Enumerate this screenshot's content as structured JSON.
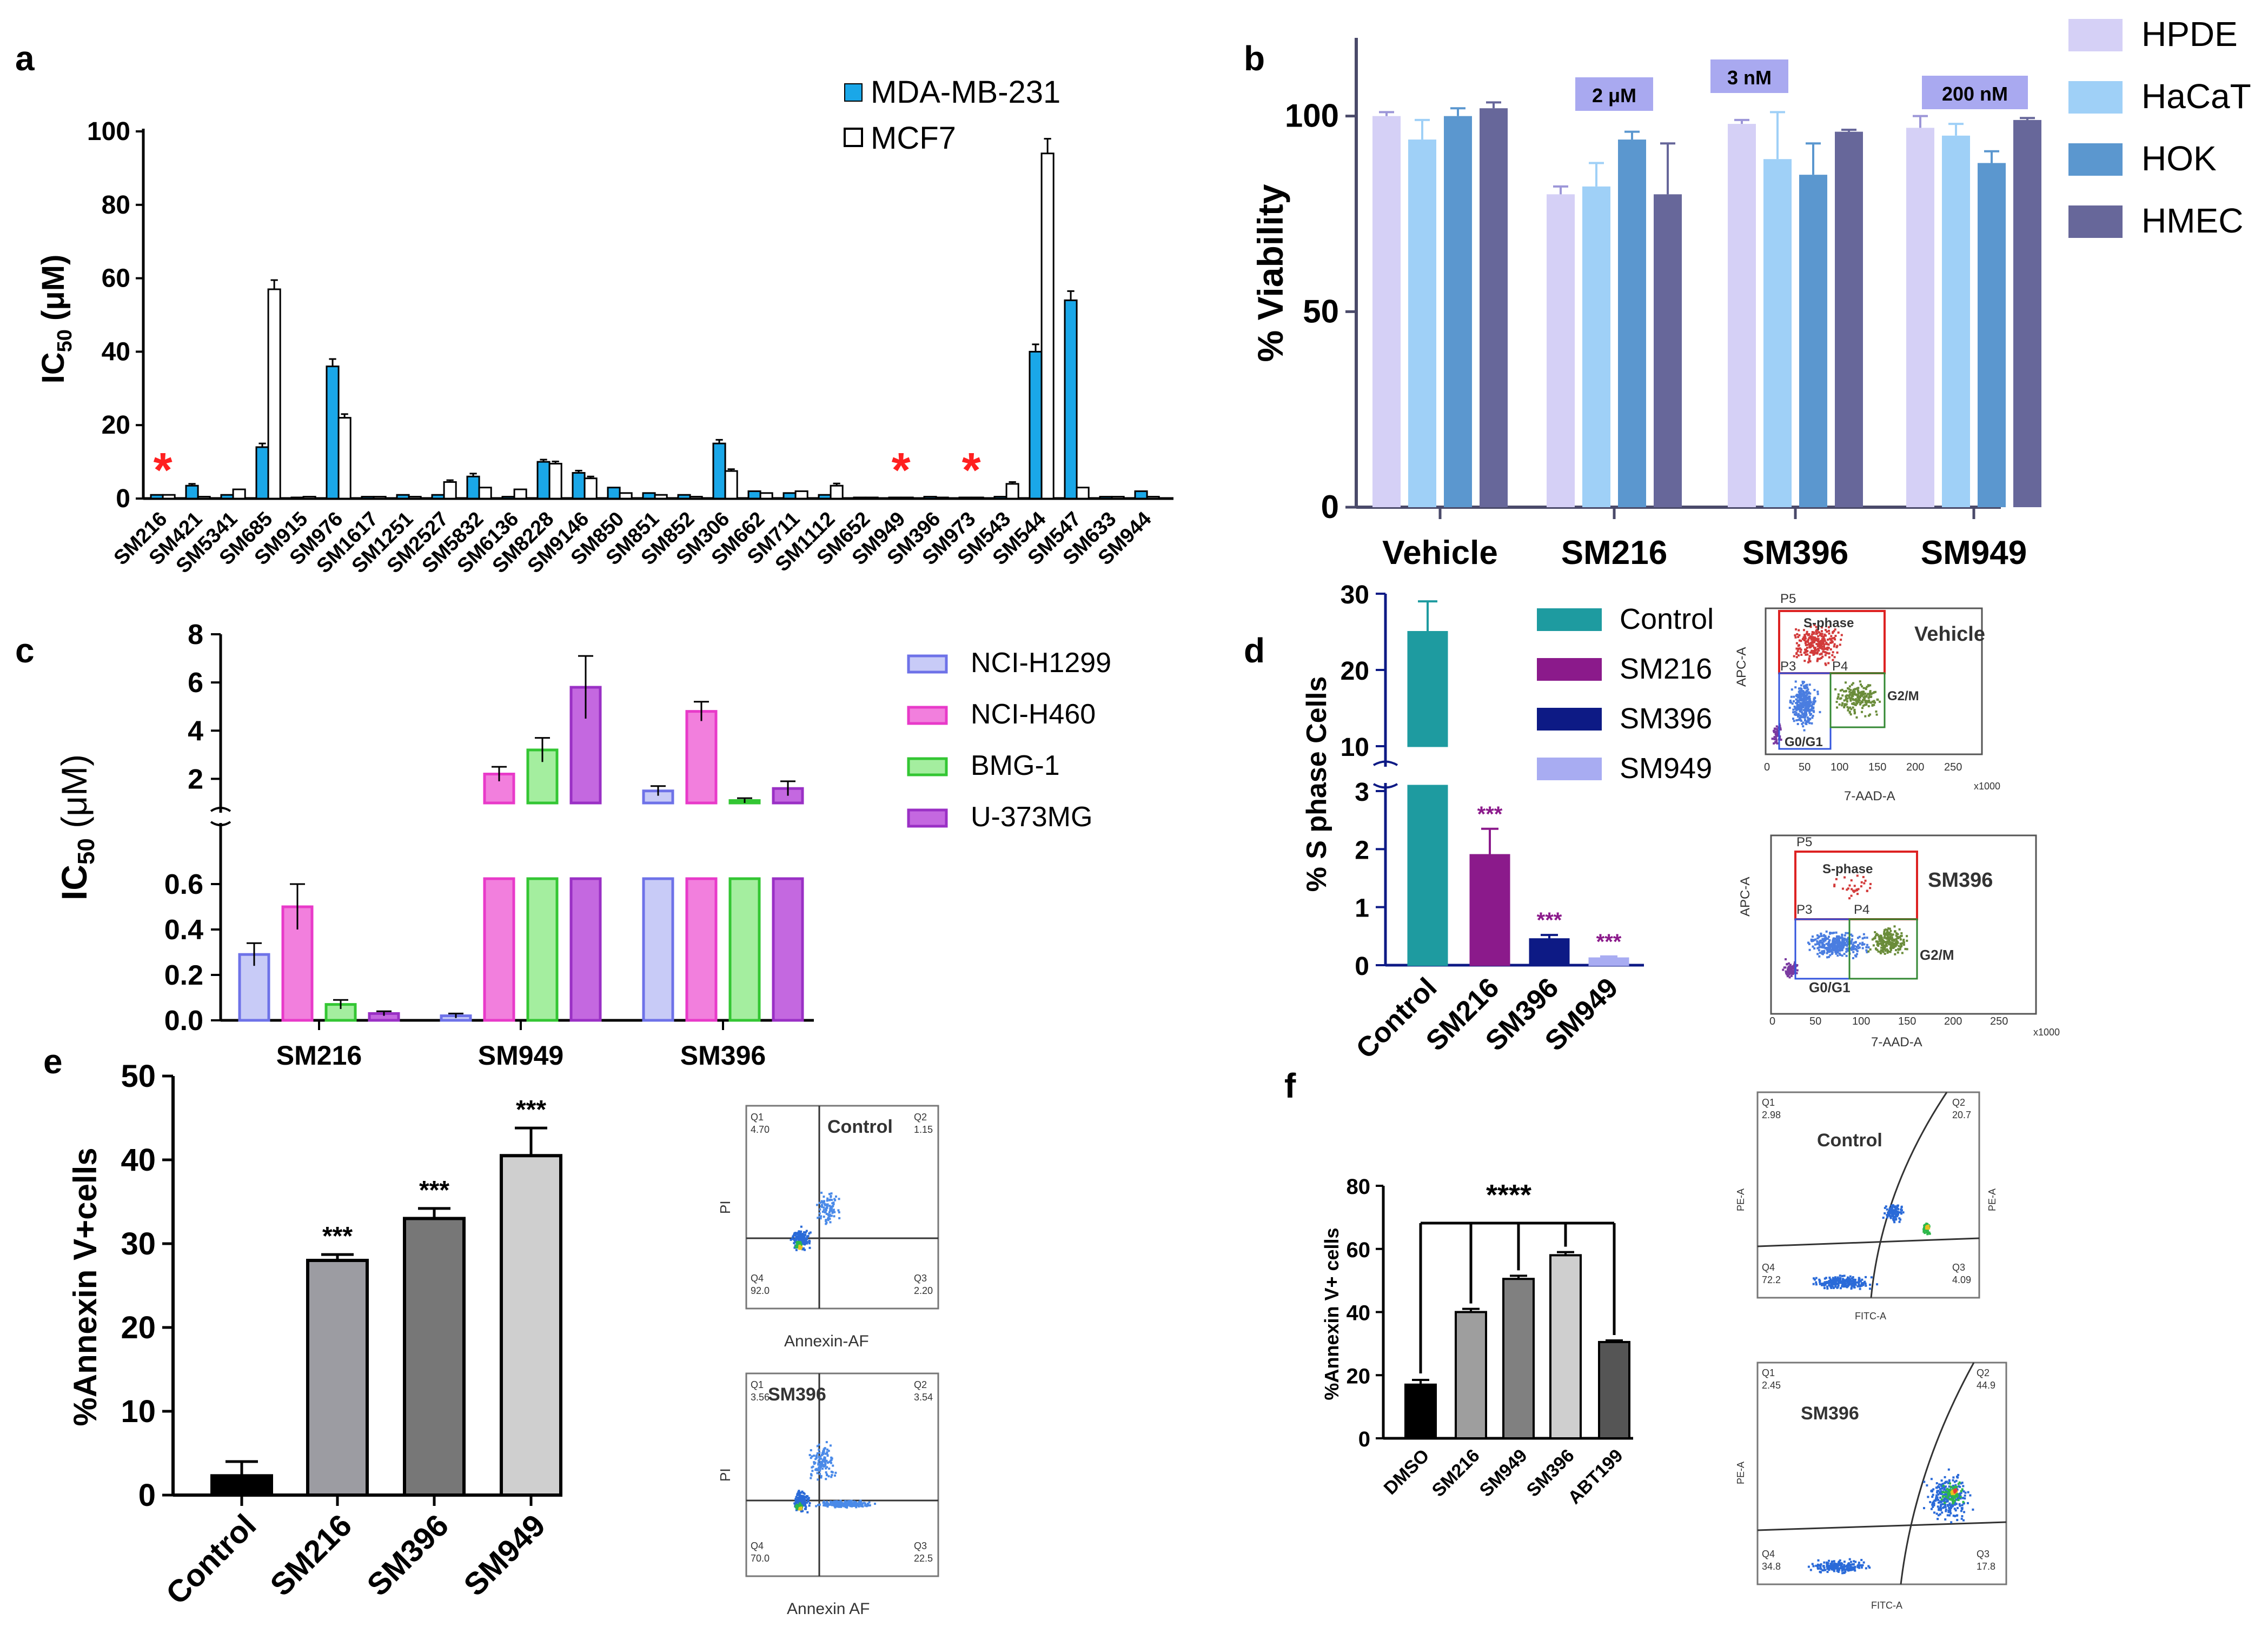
{
  "chart_data": [
    {
      "panel": "a",
      "type": "bar",
      "ylabel": "IC50 (μM)",
      "ylabel_main": "IC",
      "ylabel_sub": "50",
      "ylabel_unit": " (μM)",
      "ylim": [
        0,
        100
      ],
      "yticks": [
        0,
        20,
        40,
        60,
        80,
        100
      ],
      "categories": [
        "SM216",
        "SM421",
        "SM5341",
        "SM685",
        "SM915",
        "SM976",
        "SM1617",
        "SM1251",
        "SM2527",
        "SM5832",
        "SM6136",
        "SM8228",
        "SM9146",
        "SM850",
        "SM851",
        "SM852",
        "SM306",
        "SM662",
        "SM711",
        "SM1112",
        "SM652",
        "SM949",
        "SM396",
        "SM973",
        "SM543",
        "SM544",
        "SM547",
        "SM633",
        "SM944"
      ],
      "series": [
        {
          "name": "MDA-MB-231",
          "color": "#1aa7e8",
          "values": [
            1,
            3.5,
            1,
            14,
            0.3,
            36,
            0.5,
            1,
            1,
            6,
            0.5,
            10,
            7,
            3,
            1.5,
            1,
            15,
            2,
            1.5,
            1,
            0.3,
            0.3,
            0.5,
            0.3,
            0.5,
            40,
            54,
            0.5,
            2
          ],
          "errors": [
            0,
            0.5,
            0,
            1,
            0,
            2,
            0,
            0,
            0,
            0.8,
            0,
            0.6,
            0.6,
            0,
            0,
            0,
            1,
            0,
            0,
            0,
            0,
            0,
            0,
            0,
            0,
            2,
            2.5,
            0,
            0
          ]
        },
        {
          "name": "MCF7",
          "color": "#ffffff",
          "values": [
            1,
            0.5,
            2.5,
            57,
            0.5,
            22,
            0.5,
            0.5,
            4.5,
            3,
            2.5,
            9.5,
            5.5,
            1.5,
            1,
            0.5,
            7.5,
            1.5,
            2,
            3.5,
            0.3,
            0.3,
            0.3,
            0.3,
            4,
            94,
            3,
            0.5,
            0.5
          ],
          "errors": [
            0,
            0,
            0,
            2.5,
            0,
            1,
            0,
            0,
            0.5,
            0,
            0,
            0.6,
            0.5,
            0,
            0,
            0,
            0.5,
            0,
            0,
            0.6,
            0,
            0,
            0,
            0,
            0.5,
            4,
            0,
            0,
            0
          ]
        }
      ],
      "annotations": [
        {
          "text": "*",
          "category": "SM216"
        },
        {
          "text": "*",
          "category": "SM949"
        },
        {
          "text": "*",
          "category": "SM973"
        }
      ]
    },
    {
      "panel": "b",
      "type": "bar",
      "ylabel": "% Viability",
      "ylim": [
        0,
        120
      ],
      "yticks": [
        0,
        50,
        100
      ],
      "categories": [
        "Vehicle",
        "SM216",
        "SM396",
        "SM949"
      ],
      "series": [
        {
          "name": "HPDE",
          "color": "#d5d0f6",
          "values": [
            100,
            80,
            98,
            97
          ],
          "errors": [
            1,
            2,
            1,
            3
          ]
        },
        {
          "name": "HaCaT",
          "color": "#9fd0f7",
          "values": [
            94,
            82,
            89,
            95
          ],
          "errors": [
            5,
            6,
            12,
            3
          ]
        },
        {
          "name": "HOK",
          "color": "#5b97cf",
          "values": [
            100,
            94,
            85,
            88
          ],
          "errors": [
            2,
            2,
            8,
            3
          ]
        },
        {
          "name": "HMEC",
          "color": "#67679a",
          "values": [
            102,
            80,
            96,
            99
          ],
          "errors": [
            1.5,
            13,
            0.5,
            0.5
          ]
        }
      ],
      "annotations": [
        {
          "text": "2 μM",
          "category": "SM216"
        },
        {
          "text": "3 nM",
          "category": "SM396"
        },
        {
          "text": "200 nM",
          "category": "SM949"
        }
      ]
    },
    {
      "panel": "c",
      "type": "bar",
      "ylabel": "IC50 (μM)",
      "ylabel_main": "IC",
      "ylabel_sub": "50",
      "ylabel_unit": " (μM)",
      "axis_break": {
        "lower_ylim": [
          0,
          0.6
        ],
        "upper_ylim": [
          1,
          8
        ]
      },
      "yticks_lower": [
        "0.0",
        "0.2",
        "0.4",
        "0.6"
      ],
      "yticks_upper": [
        "2",
        "4",
        "6",
        "8"
      ],
      "categories": [
        "SM216",
        "SM949",
        "SM396"
      ],
      "series": [
        {
          "name": "NCI-H1299",
          "color": "#6e72e8",
          "fill": "#c8cbf7",
          "values": [
            0.29,
            0.02,
            1.5
          ],
          "errors": [
            0.05,
            0.01,
            0.2
          ]
        },
        {
          "name": "NCI-H460",
          "color": "#e83ac9",
          "fill": "#f27fdd",
          "values": [
            0.5,
            2.2,
            4.8
          ],
          "errors": [
            0.1,
            0.3,
            0.4
          ]
        },
        {
          "name": "BMG-1",
          "color": "#33c633",
          "fill": "#a4ee9f",
          "values": [
            0.07,
            3.2,
            1.1
          ],
          "errors": [
            0.02,
            0.5,
            0.1
          ]
        },
        {
          "name": "U-373MG",
          "color": "#9a30c5",
          "fill": "#c468e0",
          "values": [
            0.03,
            5.8,
            1.6
          ],
          "errors": [
            0.01,
            1.3,
            0.3
          ]
        }
      ]
    },
    {
      "panel": "d",
      "type": "bar",
      "ylabel": "% S phase Cells",
      "axis_break": {
        "lower_ylim": [
          0,
          3
        ],
        "upper_ylim": [
          10,
          30
        ]
      },
      "yticks_lower": [
        "0",
        "1",
        "2",
        "3"
      ],
      "yticks_upper": [
        "10",
        "20",
        "30"
      ],
      "categories": [
        "Control",
        "SM216",
        "SM396",
        "SM949"
      ],
      "values": [
        25,
        1.9,
        0.45,
        0.12
      ],
      "errors": [
        4,
        0.45,
        0.07,
        0.03
      ],
      "series": [
        {
          "name": "Control",
          "color": "#1e9ba0"
        },
        {
          "name": "SM216",
          "color": "#8b1a8b"
        },
        {
          "name": "SM396",
          "color": "#0d1a85"
        },
        {
          "name": "SM949",
          "color": "#a8acf2"
        }
      ],
      "annotations": [
        {
          "text": "***",
          "category": "SM216"
        },
        {
          "text": "***",
          "category": "SM396"
        },
        {
          "text": "***",
          "category": "SM949"
        }
      ]
    },
    {
      "panel": "e",
      "type": "bar",
      "ylabel": "%Annexin V+cells",
      "ylim": [
        0,
        50
      ],
      "yticks": [
        0,
        10,
        20,
        30,
        40,
        50
      ],
      "categories": [
        "Control",
        "SM216",
        "SM396",
        "SM949"
      ],
      "values": [
        2.3,
        28,
        33,
        40.5
      ],
      "errors": [
        1.7,
        0.7,
        1.2,
        3.3
      ],
      "colors": [
        "#000000",
        "#9c9ca2",
        "#777777",
        "#cfcfcf"
      ],
      "annotations": [
        {
          "text": "***",
          "category": "SM216"
        },
        {
          "text": "***",
          "category": "SM396"
        },
        {
          "text": "***",
          "category": "SM949"
        }
      ]
    },
    {
      "panel": "f",
      "type": "bar",
      "ylabel": "%Annexin V+ cells",
      "ylim": [
        0,
        80
      ],
      "yticks": [
        0,
        20,
        40,
        60,
        80
      ],
      "categories": [
        "DMSO",
        "SM216",
        "SM949",
        "SM396",
        "ABT199"
      ],
      "values": [
        17,
        40,
        50.5,
        58,
        30.5
      ],
      "errors": [
        1.5,
        1,
        1,
        1,
        0.5
      ],
      "colors": [
        "#000000",
        "#9e9e9e",
        "#808080",
        "#cfcfcf",
        "#555555"
      ],
      "significance": "****"
    }
  ],
  "panels": {
    "a": "a",
    "b": "b",
    "c": "c",
    "d": "d",
    "e": "e",
    "f": "f"
  },
  "flow": {
    "d_vehicle": {
      "title": "Vehicle",
      "gate": "S-phase",
      "p5": "P5",
      "p3": "P3",
      "p4": "P4",
      "g2m": "G2/M",
      "g0g1": "G0/G1",
      "xlabel": "7-AAD-A",
      "ylabel": "APC-A",
      "xmult": "x1000",
      "xticks": [
        "0",
        "50",
        "100",
        "150",
        "200",
        "250"
      ]
    },
    "d_sm396": {
      "title": "SM396",
      "gate": "S-phase",
      "p5": "P5",
      "p3": "P3",
      "p4": "P4",
      "g2m": "G2/M",
      "g0g1": "G0/G1",
      "xlabel": "7-AAD-A",
      "ylabel": "APC-A",
      "xmult": "x1000",
      "xticks": [
        "0",
        "50",
        "100",
        "150",
        "200",
        "250"
      ]
    },
    "e_control": {
      "title": "Control",
      "q1": "Q1",
      "q1v": "4.70",
      "q2": "Q2",
      "q2v": "1.15",
      "q3": "Q3",
      "q3v": "2.20",
      "q4": "Q4",
      "q4v": "92.0",
      "xlabel": "Annexin-AF",
      "ylabel": "PI"
    },
    "e_sm396": {
      "title": "SM396",
      "q1": "Q1",
      "q1v": "3.56",
      "q2": "Q2",
      "q2v": "3.54",
      "q3": "Q3",
      "q3v": "22.5",
      "q4": "Q4",
      "q4v": "70.0",
      "xlabel": "Annexin AF",
      "ylabel": "PI"
    },
    "f_control": {
      "title": "Control",
      "q1": "Q1",
      "q1v": "2.98",
      "q2": "Q2",
      "q2v": "20.7",
      "q3": "Q3",
      "q3v": "4.09",
      "q4": "Q4",
      "q4v": "72.2",
      "xlabel": "FITC-A",
      "ylabel": "PE-A"
    },
    "f_sm396": {
      "title": "SM396",
      "q1": "Q1",
      "q1v": "2.45",
      "q2": "Q2",
      "q2v": "44.9",
      "q3": "Q3",
      "q3v": "17.8",
      "q4": "Q4",
      "q4v": "34.8",
      "xlabel": "FITC-A",
      "ylabel": "PE-A"
    }
  }
}
